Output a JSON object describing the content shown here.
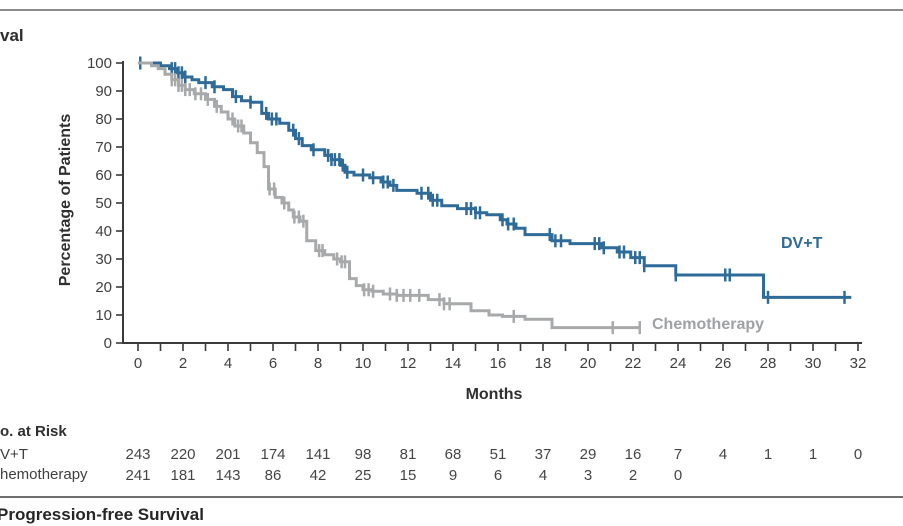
{
  "labels": {
    "top_title_fragment": "val",
    "y_axis": "Percentage of Patients",
    "x_axis": "Months",
    "series_dvt": "DV+T",
    "series_chemo": "Chemotherapy",
    "bottom_section_fragment": "Progression-free Survival"
  },
  "colors": {
    "dvt": "#2e6b98",
    "chemo": "#a7a9ab",
    "axis": "#3a3a3a",
    "tick_text": "#404040",
    "risk_text": "#454545"
  },
  "chart_data": {
    "type": "line",
    "subtype": "kaplan-meier-step",
    "xlabel": "Months",
    "ylabel": "Percentage of Patients",
    "xlim": [
      0,
      32
    ],
    "ylim": [
      0,
      100
    ],
    "xticks": [
      0,
      2,
      4,
      6,
      8,
      10,
      12,
      14,
      16,
      18,
      20,
      22,
      24,
      26,
      28,
      30,
      32
    ],
    "minor_xtick_every": 1,
    "yticks": [
      0,
      10,
      20,
      30,
      40,
      50,
      60,
      70,
      80,
      90,
      100
    ],
    "grid": false,
    "legend_position": "inline-curve-labels",
    "series": [
      {
        "name": "DV+T",
        "color": "#2e6b98",
        "end_month": 31.7,
        "points": [
          [
            0,
            100
          ],
          [
            1.0,
            99
          ],
          [
            1.4,
            98
          ],
          [
            1.7,
            96.5
          ],
          [
            2.0,
            95
          ],
          [
            2.4,
            94
          ],
          [
            2.7,
            93
          ],
          [
            3.3,
            91.5
          ],
          [
            3.8,
            90.5
          ],
          [
            4.2,
            88
          ],
          [
            4.6,
            86.5
          ],
          [
            5.0,
            86
          ],
          [
            5.5,
            82
          ],
          [
            5.8,
            80
          ],
          [
            6.3,
            78.5
          ],
          [
            6.7,
            76
          ],
          [
            7.0,
            73
          ],
          [
            7.3,
            70.5
          ],
          [
            7.7,
            69
          ],
          [
            8.3,
            67
          ],
          [
            8.6,
            65.5
          ],
          [
            9.0,
            63.5
          ],
          [
            9.2,
            61
          ],
          [
            9.6,
            60
          ],
          [
            10.3,
            59
          ],
          [
            10.8,
            57.5
          ],
          [
            11.2,
            56.3
          ],
          [
            11.5,
            54.5
          ],
          [
            12.4,
            53.5
          ],
          [
            13.0,
            51
          ],
          [
            13.5,
            49
          ],
          [
            14.2,
            48
          ],
          [
            15.0,
            46.5
          ],
          [
            15.5,
            45.8
          ],
          [
            16.1,
            44
          ],
          [
            16.4,
            42.5
          ],
          [
            16.8,
            41
          ],
          [
            17.2,
            38.7
          ],
          [
            18.4,
            36.5
          ],
          [
            19.2,
            35.5
          ],
          [
            20.6,
            34
          ],
          [
            21.3,
            32.5
          ],
          [
            21.9,
            30.5
          ],
          [
            22.5,
            27.6
          ],
          [
            23.9,
            24.3
          ],
          [
            27.8,
            16.3
          ]
        ],
        "censor_months": [
          0.1,
          1.5,
          1.65,
          1.8,
          1.95,
          2.1,
          3.0,
          3.4,
          4.35,
          5.0,
          5.7,
          5.95,
          6.15,
          6.9,
          7.15,
          7.8,
          8.45,
          8.6,
          8.75,
          8.95,
          9.1,
          9.3,
          10.0,
          10.45,
          10.9,
          11.1,
          11.35,
          12.6,
          12.9,
          13.1,
          13.3,
          14.6,
          14.8,
          15.0,
          15.2,
          16.2,
          16.45,
          16.7,
          18.3,
          18.55,
          18.8,
          20.3,
          20.5,
          20.7,
          21.4,
          21.6,
          22.1,
          22.3,
          22.5,
          23.9,
          26.1,
          26.3,
          28.0,
          31.4
        ]
      },
      {
        "name": "Chemotherapy",
        "color": "#a7a9ab",
        "end_month": 22.35,
        "points": [
          [
            0,
            100
          ],
          [
            0.6,
            99
          ],
          [
            0.9,
            98
          ],
          [
            1.2,
            96
          ],
          [
            1.5,
            94
          ],
          [
            1.8,
            92
          ],
          [
            2.1,
            90.5
          ],
          [
            2.5,
            89
          ],
          [
            3.0,
            87
          ],
          [
            3.4,
            84.5
          ],
          [
            3.7,
            82.5
          ],
          [
            4.0,
            80
          ],
          [
            4.3,
            77.5
          ],
          [
            4.7,
            75
          ],
          [
            5.0,
            71.5
          ],
          [
            5.3,
            68
          ],
          [
            5.6,
            63
          ],
          [
            5.8,
            55
          ],
          [
            6.1,
            52
          ],
          [
            6.4,
            50
          ],
          [
            6.7,
            47.5
          ],
          [
            6.9,
            45
          ],
          [
            7.2,
            43.5
          ],
          [
            7.5,
            36.5
          ],
          [
            7.9,
            33
          ],
          [
            8.3,
            31.5
          ],
          [
            8.7,
            30
          ],
          [
            9.0,
            29
          ],
          [
            9.4,
            23
          ],
          [
            9.7,
            20.5
          ],
          [
            10.0,
            19
          ],
          [
            10.4,
            18.5
          ],
          [
            10.9,
            17.5
          ],
          [
            11.5,
            17
          ],
          [
            12.9,
            15.5
          ],
          [
            13.6,
            14
          ],
          [
            14.8,
            11.5
          ],
          [
            15.6,
            10
          ],
          [
            16.2,
            9.5
          ],
          [
            17.2,
            8.5
          ],
          [
            18.4,
            5.5
          ]
        ],
        "censor_months": [
          1.5,
          1.65,
          1.8,
          1.95,
          2.1,
          2.3,
          2.55,
          2.8,
          3.1,
          3.5,
          4.2,
          4.45,
          4.6,
          5.85,
          6.05,
          6.5,
          6.95,
          7.15,
          7.35,
          8.05,
          8.2,
          8.85,
          9.05,
          9.2,
          10.05,
          10.25,
          10.45,
          11.2,
          11.5,
          11.8,
          12.1,
          12.5,
          13.4,
          13.6,
          13.85,
          16.7,
          21.1,
          22.3
        ]
      }
    ]
  },
  "risk_table": {
    "header_fragment": "o. at Risk",
    "months": [
      0,
      2,
      4,
      6,
      8,
      10,
      12,
      14,
      16,
      18,
      20,
      22,
      24,
      26,
      28,
      30,
      32
    ],
    "rows": [
      {
        "label_fragment": "V+T",
        "counts": [
          243,
          220,
          201,
          174,
          141,
          98,
          81,
          68,
          51,
          37,
          29,
          16,
          7,
          4,
          1,
          1,
          0
        ]
      },
      {
        "label_fragment": "hemotherapy",
        "counts": [
          241,
          181,
          143,
          86,
          42,
          25,
          15,
          9,
          6,
          4,
          3,
          2,
          0
        ]
      }
    ]
  }
}
